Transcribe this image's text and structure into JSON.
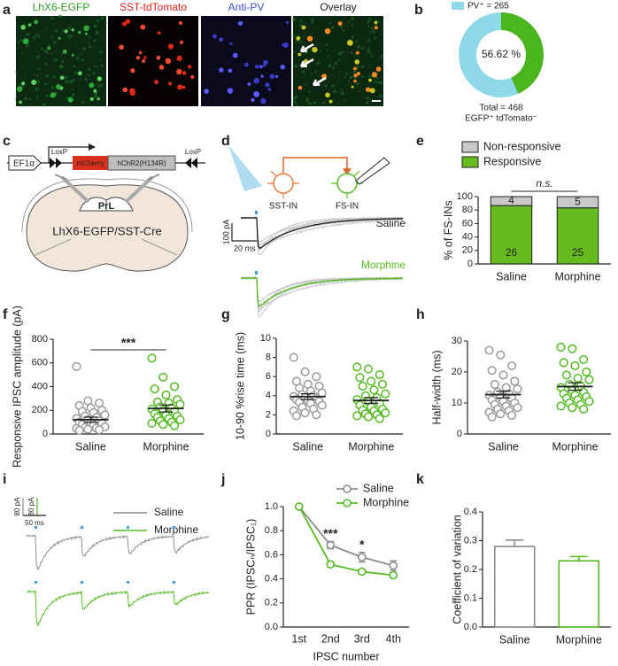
{
  "panels": [
    "a",
    "b",
    "c",
    "d",
    "e",
    "f",
    "g",
    "h",
    "i",
    "j",
    "k"
  ],
  "images": [
    {
      "label": "LhX6-EGFP"
    },
    {
      "label": "SST-tdTomato"
    },
    {
      "label": "Anti-PV"
    },
    {
      "label": "Overlay"
    }
  ],
  "diagram_c": {
    "promoter": "EF1α",
    "loxp_left": "LoxP",
    "gene_1": "mCherry",
    "gene_2": "hChR2(H134R)",
    "loxp_right": "LoxP",
    "region": "PrL",
    "mouse": "LhX6-EGFP/SST-Cre"
  },
  "diagram_d": {
    "pre": "SST-IN",
    "post": "FS-IN",
    "trace_1": "Saline",
    "trace_2": "Morphine",
    "scale_y": "100 pA",
    "scale_x": "20 ms"
  },
  "traces_i": {
    "legend_1": "Saline",
    "legend_2": "Morphine",
    "scale_y_1": "80 pA",
    "scale_y_2": "80 pA",
    "scale_x": "50 ms"
  },
  "chart_data": [
    {
      "type": "pie",
      "labels": [
        "PV⁺ = 265",
        null
      ],
      "values": [
        265,
        203
      ],
      "colors": [
        "#8fd8e8",
        "#4ab51e"
      ],
      "center_label": "56.62 %",
      "footer": [
        "Total = 468",
        "EGFP⁺ tdTomato⁻"
      ]
    },
    {
      "type": "stacked_bar",
      "ylabel": "% of FS-INs",
      "categories": [
        "Saline",
        "Morphine"
      ],
      "series": [
        {
          "name": "Responsive",
          "color": "#66bb1e",
          "values": [
            86.67,
            83.33
          ],
          "counts": [
            26,
            25
          ]
        },
        {
          "name": "Non-responsive",
          "color": "#c8c8c8",
          "values": [
            13.33,
            16.67
          ],
          "counts": [
            4,
            5
          ]
        }
      ],
      "ylim": [
        0,
        100
      ],
      "yticks": [
        0,
        20,
        40,
        60,
        80,
        100
      ],
      "annotation": "n.s."
    },
    {
      "type": "strip",
      "ylabel": "Responsive IPSC amplitude (pA)",
      "categories": [
        "Saline",
        "Morphine"
      ],
      "groups": [
        {
          "color": "#9a9a9a",
          "values": [
            570,
            280,
            260,
            240,
            220,
            200,
            190,
            180,
            160,
            150,
            140,
            130,
            120,
            110,
            100,
            95,
            90,
            80,
            70,
            60,
            55,
            50,
            45,
            40,
            35,
            30
          ],
          "mean": 120,
          "sem": 22
        },
        {
          "color": "#55bb22",
          "values": [
            640,
            480,
            400,
            380,
            330,
            290,
            270,
            260,
            250,
            230,
            220,
            210,
            200,
            190,
            170,
            160,
            150,
            140,
            130,
            120,
            110,
            100,
            90,
            80,
            70
          ],
          "mean": 215,
          "sem": 30
        }
      ],
      "ylim": [
        0,
        800
      ],
      "yticks": [
        0,
        200,
        400,
        600,
        800
      ],
      "annotation": "***"
    },
    {
      "type": "strip",
      "ylabel": "10-90 %rise time (ms)",
      "categories": [
        "Saline",
        "Morphine"
      ],
      "groups": [
        {
          "color": "#9a9a9a",
          "values": [
            8,
            6.5,
            6,
            5.5,
            5.2,
            5,
            4.8,
            4.5,
            4.3,
            4.1,
            4,
            3.9,
            3.8,
            3.7,
            3.6,
            3.5,
            3.4,
            3.3,
            3.2,
            3,
            2.8,
            2.6,
            2.4,
            2.2,
            2,
            1.9
          ],
          "mean": 3.9,
          "sem": 0.3
        },
        {
          "color": "#55bb22",
          "values": [
            7,
            6.8,
            6.2,
            5.9,
            5.5,
            5.2,
            5,
            4.6,
            4.2,
            4,
            3.8,
            3.6,
            3.4,
            3.2,
            3,
            2.8,
            2.6,
            2.5,
            2.4,
            2.2,
            2.1,
            2,
            1.9,
            1.8,
            1.6
          ],
          "mean": 3.5,
          "sem": 0.3
        }
      ],
      "ylim": [
        0,
        10
      ],
      "yticks": [
        0,
        2,
        4,
        6,
        8,
        10
      ]
    },
    {
      "type": "strip",
      "ylabel": "Half-width (ms)",
      "categories": [
        "Saline",
        "Morphine"
      ],
      "groups": [
        {
          "color": "#9a9a9a",
          "values": [
            27,
            25.5,
            22,
            20.5,
            19,
            17,
            16,
            15,
            14.5,
            13.5,
            13,
            12.5,
            12,
            11.5,
            11,
            10.5,
            10,
            9.5,
            9,
            8.5,
            8,
            7.5,
            7,
            6.5,
            6,
            5.5
          ],
          "mean": 12.7,
          "sem": 1.1
        },
        {
          "color": "#55bb22",
          "values": [
            28,
            27.5,
            24,
            23,
            22,
            20,
            19,
            18,
            17.5,
            16,
            15.5,
            15,
            14,
            13.5,
            13,
            12.5,
            12,
            11.5,
            11,
            10.5,
            10,
            9.5,
            9,
            8.5,
            8
          ],
          "mean": 15.3,
          "sem": 1.2
        }
      ],
      "ylim": [
        0,
        30
      ],
      "yticks": [
        0,
        10,
        20,
        30
      ]
    },
    {
      "type": "line",
      "ylabel": "PPR (IPSCₙ/IPSC₁)",
      "xlabel": "IPSC number",
      "categories": [
        "1st",
        "2nd",
        "3rd",
        "4th"
      ],
      "series": [
        {
          "name": "Saline",
          "color": "#8c8c8c",
          "values": [
            1,
            0.68,
            0.58,
            0.51
          ],
          "errors": [
            0,
            0.03,
            0.04,
            0.04
          ]
        },
        {
          "name": "Morphine",
          "color": "#55bb22",
          "values": [
            1,
            0.52,
            0.46,
            0.43
          ],
          "errors": [
            0,
            0.02,
            0.02,
            0.02
          ]
        }
      ],
      "ylim": [
        0,
        1
      ],
      "yticks": [
        {
          "value": 0,
          "label": "0.0"
        },
        0.2,
        0.4,
        0.6,
        0.8,
        {
          "value": 1,
          "label": "1.0"
        }
      ],
      "annotations": [
        "***",
        "*"
      ]
    },
    {
      "type": "bar",
      "ylabel": "Coefficient of variation",
      "categories": [
        "Saline",
        "Morphine"
      ],
      "values": [
        0.28,
        0.23
      ],
      "errors": [
        0.022,
        0.015
      ],
      "colors": [
        "#8c8c8c",
        "#55bb22"
      ],
      "ylim": [
        0,
        0.4
      ],
      "yticks": [
        {
          "value": 0,
          "label": "0.0"
        },
        0.1,
        0.2,
        0.3,
        0.4
      ]
    }
  ]
}
